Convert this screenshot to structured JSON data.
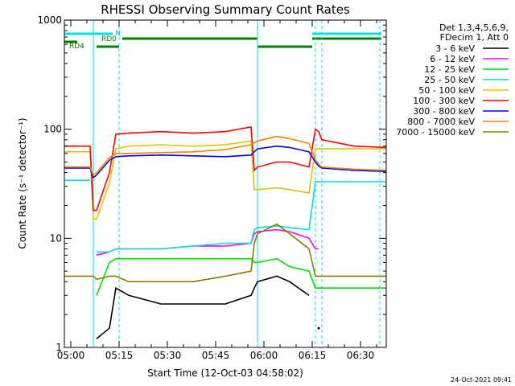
{
  "chart_data": {
    "type": "line",
    "title": "RHESSI Observing Summary Count Rates",
    "xlabel": "Start Time (12-Oct-03 04:58:02)",
    "ylabel": "Count Rate (s⁻¹ detector⁻¹)",
    "y_scale": "log",
    "ylim": [
      1,
      1000
    ],
    "xlim": [
      "04:58",
      "06:38"
    ],
    "y_ticks": [
      "1",
      "10",
      "100",
      "1000"
    ],
    "x_ticks": [
      "05:00",
      "05:15",
      "05:30",
      "05:45",
      "06:00",
      "06:15",
      "06:30"
    ],
    "legend_header": [
      "Det 1,3,4,5,6,9,",
      "FDecim 1, Att 0"
    ],
    "legend_placement": "right",
    "stamp": "24-Oct-2021 09:41",
    "attenuator_states": [
      "N",
      "RD0",
      "RD4"
    ],
    "x_minutes": [
      0,
      8,
      9,
      10,
      14,
      16,
      20,
      30,
      40,
      50,
      58,
      59,
      60,
      66,
      70,
      76,
      78,
      79,
      80,
      90,
      100
    ],
    "series": [
      {
        "name": "3 - 6 keV",
        "color": "#000000",
        "values": [
          null,
          null,
          null,
          1.2,
          1.5,
          3.5,
          3.0,
          2.5,
          2.5,
          2.5,
          3.0,
          3.5,
          4.0,
          4.5,
          4.0,
          3.0,
          null,
          1.5,
          null,
          null,
          null
        ]
      },
      {
        "name": "6 - 12 keV",
        "color": "#ff00ff",
        "values": [
          null,
          null,
          null,
          7.0,
          7.5,
          8.0,
          8.0,
          8.0,
          8.5,
          8.5,
          9.0,
          11.0,
          11.5,
          12.0,
          11.5,
          10.0,
          8.0,
          8.0,
          null,
          null,
          null
        ]
      },
      {
        "name": "12 - 25 keV",
        "color": "#00dd00",
        "values": [
          null,
          null,
          null,
          3.0,
          6.0,
          6.5,
          6.5,
          6.5,
          6.5,
          6.5,
          6.5,
          6.0,
          6.0,
          6.5,
          5.5,
          5.0,
          3.5,
          3.5,
          3.5,
          3.5,
          3.5
        ]
      },
      {
        "name": "25 - 50 keV",
        "color": "#00e0e0",
        "values": [
          34,
          34,
          null,
          7.5,
          7.5,
          8.0,
          8.0,
          8.0,
          8.5,
          9.0,
          9.0,
          12.0,
          12.5,
          13.0,
          12.5,
          12.0,
          33,
          33,
          33,
          33,
          33
        ]
      },
      {
        "name": "50 - 100 keV",
        "color": "#d4c800",
        "values": [
          62,
          62,
          15,
          15,
          32,
          66,
          70,
          72,
          70,
          72,
          78,
          28,
          28,
          29,
          28,
          26,
          66,
          66,
          66,
          66,
          66
        ]
      },
      {
        "name": "100 - 300 keV",
        "color": "#ff0000",
        "values": [
          70,
          70,
          18,
          18,
          40,
          90,
          92,
          95,
          92,
          95,
          105,
          42,
          45,
          50,
          50,
          45,
          100,
          95,
          80,
          70,
          68
        ]
      },
      {
        "name": "300 - 800 keV",
        "color": "#0000ff",
        "values": [
          44,
          44,
          36,
          38,
          52,
          56,
          57,
          58,
          57,
          56,
          58,
          62,
          66,
          70,
          68,
          62,
          50,
          46,
          44,
          42,
          41
        ]
      },
      {
        "name": "800 - 7000 keV",
        "color": "#ff8000",
        "values": [
          45,
          45,
          38,
          40,
          55,
          60,
          60,
          61,
          62,
          65,
          72,
          75,
          78,
          86,
          82,
          74,
          52,
          48,
          45,
          43,
          42
        ]
      },
      {
        "name": "7000 - 15000 keV",
        "color": "#808000",
        "values": [
          4.5,
          4.5,
          4.5,
          4.2,
          4.5,
          4.5,
          4.0,
          4.0,
          4.0,
          4.5,
          5.0,
          9.0,
          11.0,
          13.5,
          11.0,
          8.0,
          4.5,
          4.5,
          4.5,
          4.5,
          4.5
        ]
      }
    ]
  }
}
